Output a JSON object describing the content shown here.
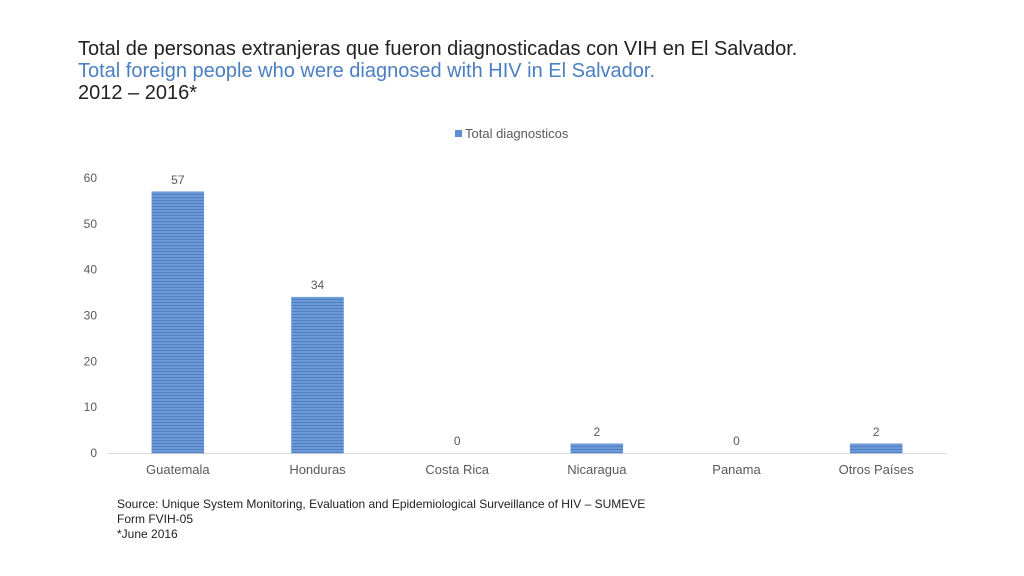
{
  "title": {
    "line1": "Total de personas extranjeras que fueron diagnosticadas con VIH en El Salvador.",
    "line2": "Total foreign people who were diagnosed with HIV in El Salvador.",
    "line3": "2012 – 2016*"
  },
  "chart_data": {
    "type": "bar",
    "categories": [
      "Guatemala",
      "Honduras",
      "Costa Rica",
      "Nicaragua",
      "Panama",
      "Otros Países"
    ],
    "series": [
      {
        "name": "Total diagnosticos",
        "values": [
          57,
          34,
          0,
          2,
          0,
          2
        ]
      }
    ],
    "ylim": [
      0,
      60
    ],
    "yticks": [
      0,
      10,
      20,
      30,
      40,
      50,
      60
    ],
    "grid": false,
    "legend": "top-center",
    "data_labels": true,
    "bar_color": "#5b8fd1"
  },
  "source": {
    "line1": "Source: Unique System Monitoring, Evaluation and Epidemiological Surveillance of HIV – SUMEVE",
    "line2": "Form FVIH-05",
    "line3": "*June 2016"
  }
}
